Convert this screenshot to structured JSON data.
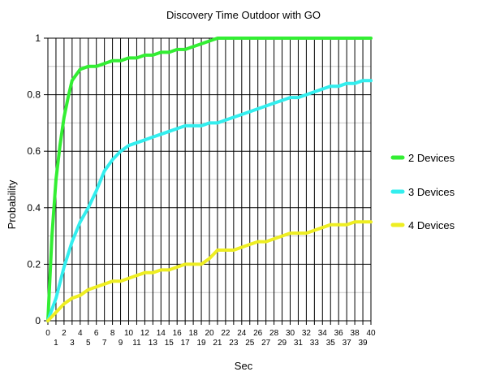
{
  "chart_data": {
    "type": "line",
    "title": "Discovery Time Outdoor with GO",
    "xlabel": "Sec",
    "ylabel": "Probability",
    "xlim": [
      0,
      40
    ],
    "ylim": [
      0,
      1
    ],
    "yticks": [
      "0",
      "0.2",
      "0.4",
      "0.6",
      "0.8",
      "1"
    ],
    "xticks": [
      "0",
      "1",
      "2",
      "3",
      "4",
      "5",
      "6",
      "7",
      "8",
      "9",
      "10",
      "11",
      "12",
      "13",
      "14",
      "15",
      "16",
      "17",
      "18",
      "19",
      "20",
      "21",
      "22",
      "23",
      "24",
      "25",
      "26",
      "27",
      "28",
      "29",
      "30",
      "31",
      "32",
      "33",
      "34",
      "35",
      "36",
      "37",
      "38",
      "39",
      "40"
    ],
    "grid": true,
    "legend_position": "right",
    "series": [
      {
        "name": "2 Devices",
        "color": "#33ee33",
        "x": [
          0,
          0.5,
          1,
          1.5,
          2,
          2.5,
          3,
          3.5,
          4,
          5,
          6,
          7,
          8,
          9,
          10,
          11,
          12,
          13,
          14,
          15,
          16,
          17,
          18,
          19,
          20,
          21,
          22,
          24,
          26,
          28,
          30,
          32,
          34,
          36,
          38,
          40
        ],
        "y": [
          0,
          0.3,
          0.5,
          0.62,
          0.72,
          0.79,
          0.85,
          0.87,
          0.89,
          0.9,
          0.9,
          0.91,
          0.92,
          0.92,
          0.93,
          0.93,
          0.94,
          0.94,
          0.95,
          0.95,
          0.96,
          0.96,
          0.97,
          0.98,
          0.99,
          1.0,
          1.0,
          1.0,
          1.0,
          1.0,
          1.0,
          1.0,
          1.0,
          1.0,
          1.0,
          1.0
        ]
      },
      {
        "name": "3 Devices",
        "color": "#33eeee",
        "x": [
          0,
          1,
          2,
          3,
          4,
          5,
          6,
          7,
          8,
          9,
          10,
          11,
          12,
          13,
          14,
          15,
          16,
          17,
          18,
          19,
          20,
          21,
          22,
          23,
          24,
          25,
          26,
          27,
          28,
          29,
          30,
          31,
          32,
          33,
          34,
          35,
          36,
          37,
          38,
          39,
          40
        ],
        "y": [
          0,
          0.08,
          0.19,
          0.28,
          0.35,
          0.4,
          0.46,
          0.53,
          0.57,
          0.6,
          0.62,
          0.63,
          0.64,
          0.65,
          0.66,
          0.67,
          0.68,
          0.69,
          0.69,
          0.69,
          0.7,
          0.7,
          0.71,
          0.72,
          0.73,
          0.74,
          0.75,
          0.76,
          0.77,
          0.78,
          0.79,
          0.79,
          0.8,
          0.81,
          0.82,
          0.83,
          0.83,
          0.84,
          0.84,
          0.85,
          0.85
        ]
      },
      {
        "name": "4 Devices",
        "color": "#eeee22",
        "x": [
          0,
          1,
          2,
          3,
          4,
          5,
          6,
          7,
          8,
          9,
          10,
          11,
          12,
          13,
          14,
          15,
          16,
          17,
          18,
          19,
          20,
          21,
          22,
          23,
          24,
          25,
          26,
          27,
          28,
          29,
          30,
          31,
          32,
          33,
          34,
          35,
          36,
          37,
          38,
          39,
          40
        ],
        "y": [
          0,
          0.03,
          0.06,
          0.08,
          0.09,
          0.11,
          0.12,
          0.13,
          0.14,
          0.14,
          0.15,
          0.16,
          0.17,
          0.17,
          0.18,
          0.18,
          0.19,
          0.2,
          0.2,
          0.2,
          0.22,
          0.25,
          0.25,
          0.25,
          0.26,
          0.27,
          0.28,
          0.28,
          0.29,
          0.3,
          0.31,
          0.31,
          0.31,
          0.32,
          0.33,
          0.34,
          0.34,
          0.34,
          0.35,
          0.35,
          0.35
        ]
      }
    ]
  }
}
